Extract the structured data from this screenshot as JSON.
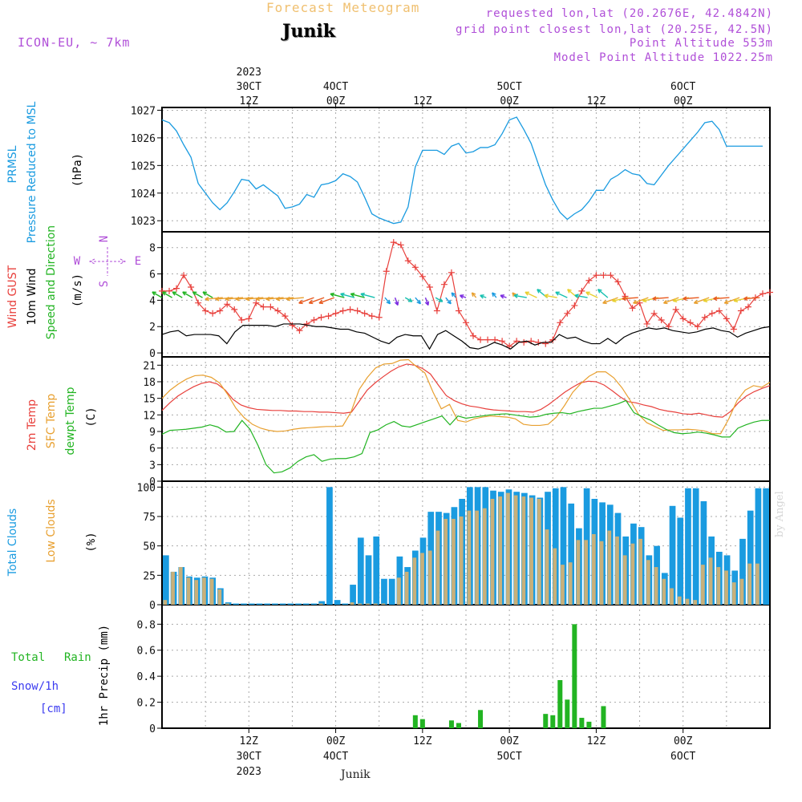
{
  "header": {
    "model": "ICON-EU, ~ 7km",
    "title": "Forecast Meteogram",
    "location": "Junik",
    "requested": "requested lon,lat (20.2676E, 42.4842N)",
    "grid_point": "grid point closest lon,lat (20.25E, 42.5N)",
    "point_altitude": "Point Altitude 553m",
    "model_altitude": "Model Point Altitude 1022.25m"
  },
  "footer": {
    "location": "Junik",
    "watermark": "by Angel"
  },
  "time_axis": {
    "top": [
      {
        "lines": [
          "2023",
          "30CT",
          "12Z"
        ],
        "hour": 12
      },
      {
        "lines": [
          "4OCT",
          "00Z"
        ],
        "hour": 24
      },
      {
        "lines": [
          "12Z"
        ],
        "hour": 36
      },
      {
        "lines": [
          "5OCT",
          "00Z"
        ],
        "hour": 48
      },
      {
        "lines": [
          "12Z"
        ],
        "hour": 60
      },
      {
        "lines": [
          "6OCT",
          "00Z"
        ],
        "hour": 72
      }
    ],
    "bottom": [
      {
        "lines": [
          "12Z",
          "30CT",
          "2023"
        ],
        "hour": 12
      },
      {
        "lines": [
          "00Z",
          "4OCT"
        ],
        "hour": 24
      },
      {
        "lines": [
          "12Z"
        ],
        "hour": 36
      },
      {
        "lines": [
          "00Z",
          "5OCT"
        ],
        "hour": 48
      },
      {
        "lines": [
          "12Z"
        ],
        "hour": 60
      },
      {
        "lines": [
          "00Z",
          "6OCT"
        ],
        "hour": 72
      }
    ]
  },
  "panels": {
    "pressure": {
      "labels": [
        "PRMSL",
        "Pressure Reduced to MSL",
        "(hPa)"
      ],
      "colors": [
        "#1a9be0",
        "#1a9be0",
        "#000000"
      ]
    },
    "wind": {
      "labels": [
        "Wind GUST",
        "10m Wind",
        "Speed and Direction",
        "(m/s)"
      ],
      "colors": [
        "#e8403c",
        "#000000",
        "#22b422",
        "#000000"
      ],
      "compass": [
        "N",
        "W",
        "E",
        "S"
      ]
    },
    "temp": {
      "labels": [
        "2m Temp",
        "SFC Temp",
        "dewpt Temp",
        "(C)"
      ],
      "colors": [
        "#e8403c",
        "#e8a030",
        "#22b422",
        "#000000"
      ]
    },
    "clouds": {
      "labels": [
        "Total Clouds",
        "Low Clouds",
        "(%)"
      ],
      "colors": [
        "#1a9be0",
        "#e8a030",
        "#000000"
      ]
    },
    "precip": {
      "labels": [
        "Total",
        "Rain",
        "Snow/1h",
        "[cm]",
        "1hr Precip (mm)"
      ],
      "colors": [
        "#22b422",
        "#22b422",
        "#3a3af0",
        "#3a3af0",
        "#000000"
      ]
    }
  },
  "chart_data": [
    {
      "type": "line",
      "title": "PRMSL Pressure Reduced to MSL",
      "ylabel": "(hPa)",
      "ylim": [
        1022.6,
        1027.1
      ],
      "yticks": [
        1023,
        1024,
        1025,
        1026,
        1027
      ],
      "x_hours": [
        0,
        65,
        74,
        84
      ],
      "series": [
        {
          "color": "#1a9be0",
          "x": [
            0,
            1,
            2,
            3,
            4,
            5,
            6,
            7,
            8,
            9,
            10,
            11,
            12,
            13,
            14,
            15,
            16,
            17,
            18,
            19,
            20,
            21,
            22,
            23,
            24,
            25,
            26,
            27,
            28,
            29,
            30,
            31,
            32,
            33,
            34,
            35,
            36,
            37,
            38,
            39,
            40,
            41,
            42,
            43,
            44,
            45,
            46,
            47,
            48,
            49,
            50,
            51,
            52,
            53,
            54,
            55,
            56,
            57,
            58,
            59,
            60,
            61,
            62,
            63,
            64,
            65,
            66,
            67,
            68,
            69,
            70,
            71,
            72,
            73,
            74,
            75,
            76,
            77,
            78,
            79,
            80,
            81,
            82,
            83
          ],
          "values": [
            1026.65,
            1026.55,
            1026.25,
            1025.75,
            1025.3,
            1024.35,
            1024.0,
            1023.65,
            1023.4,
            1023.65,
            1024.05,
            1024.5,
            1024.45,
            1024.15,
            1024.3,
            1024.1,
            1023.9,
            1023.45,
            1023.5,
            1023.6,
            1023.95,
            1023.85,
            1024.3,
            1024.35,
            1024.45,
            1024.7,
            1024.6,
            1024.4,
            1023.85,
            1023.25,
            1023.1,
            1023.0,
            1022.9,
            1022.95,
            1023.5,
            1024.95,
            1025.55,
            1025.55,
            1025.55,
            1025.4,
            1025.7,
            1025.8,
            1025.45,
            1025.5,
            1025.65,
            1025.65,
            1025.75,
            1026.15,
            1026.65,
            1026.75,
            1026.3,
            1025.8,
            1025.05,
            1024.3,
            1023.75,
            1023.3,
            1023.05,
            1023.25,
            1023.4,
            1023.7,
            1024.1,
            1024.1,
            1024.5,
            1024.65,
            1024.85,
            1024.7,
            1024.65,
            1024.35,
            1024.3,
            1024.65,
            1025.0,
            1025.3,
            1025.6,
            1025.9,
            1026.2,
            1026.55,
            1026.6,
            1026.3,
            1025.7,
            1025.7,
            1025.7,
            1025.7,
            1025.7,
            1025.7
          ]
        }
      ]
    },
    {
      "type": "line",
      "title": "Wind GUST / 10m Wind Speed and Direction",
      "ylabel": "(m/s)",
      "ylim": [
        -0.3,
        9.2
      ],
      "yticks": [
        0,
        2,
        4,
        6,
        8
      ],
      "series": [
        {
          "name": "Wind GUST",
          "color": "#e8403c",
          "values": [
            4.7,
            4.7,
            4.9,
            5.9,
            5.0,
            3.8,
            3.2,
            3.0,
            3.2,
            3.7,
            3.3,
            2.5,
            2.6,
            3.8,
            3.5,
            3.5,
            3.2,
            2.8,
            2.1,
            1.7,
            2.2,
            2.5,
            2.7,
            2.8,
            3.0,
            3.2,
            3.3,
            3.2,
            3.0,
            2.8,
            2.7,
            6.2,
            8.4,
            8.2,
            7.0,
            6.5,
            5.8,
            5.0,
            3.2,
            5.2,
            6.1,
            3.2,
            2.3,
            1.3,
            1.0,
            1.0,
            1.0,
            0.9,
            0.5,
            0.9,
            0.8,
            0.9,
            0.8,
            0.7,
            1.0,
            2.3,
            3.0,
            3.6,
            4.7,
            5.5,
            5.9,
            5.9,
            5.9,
            5.4,
            4.3,
            3.4,
            3.8,
            2.2,
            3.0,
            2.5,
            2.0,
            3.3,
            2.6,
            2.3,
            2.0,
            2.7,
            3.0,
            3.2,
            2.6,
            1.8,
            3.2,
            3.5,
            4.2,
            4.5,
            4.6
          ]
        },
        {
          "name": "10m Wind",
          "color": "#000000",
          "values": [
            1.4,
            1.6,
            1.7,
            1.3,
            1.4,
            1.4,
            1.4,
            1.3,
            0.7,
            1.6,
            2.1,
            2.1,
            2.1,
            2.1,
            2.0,
            2.2,
            2.2,
            2.2,
            2.1,
            2.0,
            2.0,
            1.9,
            1.8,
            1.8,
            1.6,
            1.5,
            1.2,
            0.9,
            0.7,
            1.2,
            1.4,
            1.3,
            1.3,
            0.3,
            1.4,
            1.7,
            1.3,
            0.9,
            0.4,
            0.3,
            0.5,
            0.8,
            0.6,
            0.3,
            0.8,
            0.9,
            0.6,
            0.8,
            0.8,
            1.4,
            1.1,
            1.2,
            0.9,
            0.7,
            0.7,
            1.1,
            0.7,
            1.2,
            1.5,
            1.7,
            1.9,
            1.8,
            1.9,
            1.7,
            1.6,
            1.5,
            1.6,
            1.8,
            1.9,
            1.7,
            1.6,
            1.2,
            1.5,
            1.7,
            1.9,
            2.0
          ]
        }
      ]
    },
    {
      "type": "line",
      "title": "2m Temp / SFC Temp / dewpt Temp",
      "ylabel": "(C)",
      "ylim": [
        0,
        22.5
      ],
      "yticks": [
        0,
        3,
        6,
        9,
        12,
        15,
        18,
        21
      ],
      "series": [
        {
          "name": "2m Temp",
          "color": "#e8403c",
          "values": [
            12.8,
            14.2,
            15.4,
            16.3,
            17.1,
            17.7,
            18.0,
            17.6,
            16.5,
            14.8,
            13.8,
            13.3,
            13.0,
            12.9,
            12.8,
            12.8,
            12.7,
            12.7,
            12.6,
            12.6,
            12.5,
            12.5,
            12.4,
            12.3,
            12.5,
            14.5,
            16.5,
            17.8,
            18.9,
            19.9,
            20.7,
            21.2,
            21.0,
            20.4,
            19.4,
            17.4,
            15.5,
            14.6,
            14.0,
            13.6,
            13.4,
            13.1,
            12.9,
            12.8,
            12.7,
            12.6,
            12.6,
            12.5,
            13.0,
            13.9,
            15.0,
            16.1,
            17.0,
            17.8,
            18.1,
            18.0,
            17.4,
            16.4,
            15.3,
            14.4,
            14.2,
            13.8,
            13.5,
            13.0,
            12.7,
            12.5,
            12.2,
            12.1,
            12.3,
            12.0,
            11.7,
            11.6,
            12.6,
            14.2,
            15.4,
            16.2,
            16.8,
            17.3
          ]
        },
        {
          "name": "SFC Temp",
          "color": "#e8a030",
          "values": [
            15.0,
            16.5,
            17.6,
            18.5,
            19.1,
            19.2,
            18.8,
            17.8,
            15.7,
            13.2,
            11.5,
            10.3,
            9.6,
            9.2,
            9.0,
            9.1,
            9.4,
            9.6,
            9.7,
            9.8,
            9.9,
            9.9,
            10.0,
            12.5,
            16.6,
            18.8,
            20.5,
            21.2,
            21.3,
            21.9,
            22.0,
            20.7,
            19.6,
            16.1,
            13.1,
            13.9,
            11.0,
            10.7,
            11.3,
            11.6,
            11.8,
            11.7,
            11.6,
            11.3,
            10.3,
            10.1,
            10.1,
            10.3,
            11.6,
            13.7,
            16.1,
            17.7,
            19.0,
            19.8,
            19.8,
            18.7,
            16.9,
            14.6,
            12.1,
            10.6,
            9.9,
            9.2,
            9.3,
            9.3,
            9.4,
            9.3,
            9.1,
            8.6,
            8.6,
            11.3,
            14.6,
            16.5,
            17.3,
            17.0,
            17.9
          ]
        },
        {
          "name": "dewpt Temp",
          "color": "#22b422",
          "values": [
            8.5,
            9.2,
            9.3,
            9.4,
            9.6,
            9.8,
            10.2,
            9.8,
            8.9,
            9.0,
            11.0,
            9.4,
            6.5,
            3.0,
            1.5,
            1.7,
            2.4,
            3.6,
            4.4,
            4.8,
            3.6,
            4.0,
            4.1,
            4.1,
            4.4,
            5.0,
            8.8,
            9.3,
            10.2,
            10.8,
            10.0,
            9.8,
            10.3,
            10.8,
            11.3,
            11.8,
            10.2,
            11.8,
            11.4,
            11.6,
            11.8,
            12.0,
            12.1,
            12.2,
            12.0,
            11.8,
            11.6,
            11.7,
            12.1,
            12.3,
            12.4,
            12.2,
            12.6,
            12.9,
            13.2,
            13.2,
            13.6,
            14.0,
            14.6,
            12.4,
            11.7,
            11.1,
            10.2,
            9.4,
            8.8,
            8.6,
            8.7,
            8.9,
            8.7,
            8.4,
            8.0,
            8.0,
            9.6,
            10.2,
            10.7,
            11.0,
            11.0
          ]
        }
      ]
    },
    {
      "type": "bar",
      "title": "Total Clouds / Low Clouds",
      "ylabel": "(%)",
      "ylim": [
        0,
        105
      ],
      "yticks": [
        0,
        25,
        50,
        75,
        100
      ],
      "series": [
        {
          "name": "Total Clouds",
          "color": "#1a9be0",
          "values": [
            42,
            28,
            32,
            24,
            23,
            24,
            23,
            14,
            2,
            1,
            1,
            1,
            1,
            1,
            1,
            1,
            1,
            1,
            1,
            1,
            3,
            100,
            4,
            1,
            17,
            57,
            42,
            58,
            22,
            22,
            41,
            32,
            46,
            57,
            79,
            79,
            78,
            83,
            90,
            100,
            100,
            100,
            97,
            96,
            98,
            96,
            95,
            93,
            91,
            96,
            99,
            100,
            86,
            65,
            99,
            90,
            87,
            85,
            78,
            58,
            69,
            66,
            42,
            50,
            27,
            84,
            74,
            99,
            99,
            88,
            58,
            45,
            42,
            29,
            56,
            80,
            99,
            99
          ]
        },
        {
          "name": "Low Clouds",
          "color": "#c8b07a",
          "values": [
            4,
            28,
            32,
            23,
            21,
            23,
            22,
            13,
            1,
            0,
            0,
            0,
            0,
            0,
            0,
            0,
            0,
            0,
            0,
            0,
            1,
            0,
            0,
            0,
            2,
            1,
            1,
            1,
            1,
            0,
            23,
            28,
            40,
            44,
            46,
            63,
            73,
            73,
            75,
            80,
            80,
            82,
            90,
            92,
            95,
            93,
            92,
            91,
            90,
            64,
            48,
            34,
            36,
            55,
            55,
            60,
            54,
            63,
            58,
            42,
            52,
            56,
            38,
            32,
            22,
            14,
            7,
            5,
            4,
            34,
            40,
            32,
            29,
            19,
            22,
            35,
            35
          ]
        }
      ]
    },
    {
      "type": "bar",
      "title": "1hr Precip",
      "ylabel": "1hr Precip (mm)",
      "ylim": [
        0,
        0.95
      ],
      "yticks": [
        0,
        0.2,
        0.4,
        0.6,
        0.8
      ],
      "series": [
        {
          "name": "Total Rain",
          "color": "#22b422",
          "x": [
            35,
            36,
            40,
            41,
            44,
            53,
            54,
            55,
            56,
            57,
            58,
            59,
            61
          ],
          "values": [
            0.1,
            0.07,
            0.06,
            0.04,
            0.14,
            0.11,
            0.1,
            0.37,
            0.22,
            0.8,
            0.08,
            0.05,
            0.17
          ]
        }
      ]
    }
  ]
}
